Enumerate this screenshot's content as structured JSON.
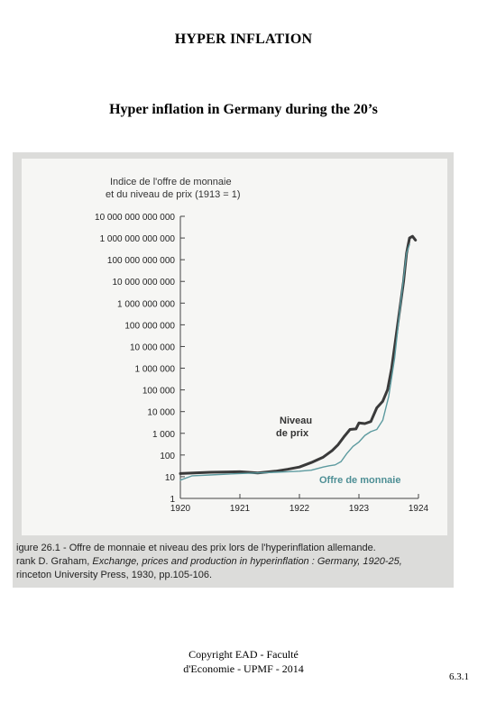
{
  "page": {
    "title": "HYPER INFLATION",
    "subtitle": "Hyper inflation in Germany during the 20’s",
    "copyright_line1": "Copyright EAD - Faculté",
    "copyright_line2": "d'Economie - UPMF - 2014",
    "page_number": "6.3.1"
  },
  "figure": {
    "caption_line1": "igure 26.1 - Offre de monnaie et niveau des prix lors de l'hyperinflation allemande.",
    "caption_line2_a": "rank D. Graham, ",
    "caption_line2_b": "Exchange, prices and production in hyperinflation : Germany, 1920-25,",
    "caption_line3": "rinceton University Press, 1930, pp.105-106."
  },
  "chart_data": {
    "type": "line",
    "title_line1": "Indice de l'offre de monnaie",
    "title_line2": "et du niveau de prix (1913 = 1)",
    "yscale": "log",
    "ylim": [
      1,
      10000000000000
    ],
    "xlim": [
      1920,
      1924
    ],
    "x_ticks": [
      "1920",
      "1921",
      "1922",
      "1923",
      "1924"
    ],
    "y_ticks": [
      {
        "value": 1,
        "label": "1"
      },
      {
        "value": 10,
        "label": "10"
      },
      {
        "value": 100,
        "label": "100"
      },
      {
        "value": 1000,
        "label": "1 000"
      },
      {
        "value": 10000,
        "label": "10 000"
      },
      {
        "value": 100000,
        "label": "100 000"
      },
      {
        "value": 1000000,
        "label": "1 000 000"
      },
      {
        "value": 10000000,
        "label": "10 000 000"
      },
      {
        "value": 100000000,
        "label": "100 000 000"
      },
      {
        "value": 1000000000,
        "label": "1 000 000 000"
      },
      {
        "value": 10000000000,
        "label": "10 000 000 000"
      },
      {
        "value": 100000000000,
        "label": "100 000 000 000"
      },
      {
        "value": 1000000000000,
        "label": "1 000 000 000 000"
      },
      {
        "value": 10000000000000,
        "label": "10 000 000 000 000"
      }
    ],
    "series": [
      {
        "name": "Niveau de prix",
        "color": "#3a3a3a",
        "x": [
          1920.0,
          1920.5,
          1921.0,
          1921.3,
          1921.6,
          1921.8,
          1922.0,
          1922.2,
          1922.4,
          1922.55,
          1922.65,
          1922.75,
          1922.85,
          1922.95,
          1923.0,
          1923.1,
          1923.2,
          1923.3,
          1923.4,
          1923.48,
          1923.55,
          1923.6,
          1923.65,
          1923.7,
          1923.75,
          1923.8,
          1923.85,
          1923.9,
          1923.95
        ],
        "y": [
          14,
          16,
          17,
          15,
          18,
          22,
          28,
          45,
          80,
          160,
          300,
          700,
          1500,
          1600,
          3000,
          2800,
          3500,
          15000,
          30000,
          100000,
          1000000,
          10000000,
          100000000,
          1000000000,
          10000000000,
          200000000000,
          1000000000000,
          1200000000000,
          800000000000
        ]
      },
      {
        "name": "Offre de monnaie",
        "color": "#5c9a9f",
        "x": [
          1920.0,
          1920.2,
          1920.5,
          1921.0,
          1921.3,
          1921.6,
          1921.8,
          1922.0,
          1922.2,
          1922.4,
          1922.5,
          1922.6,
          1922.7,
          1922.8,
          1922.9,
          1923.0,
          1923.1,
          1923.2,
          1923.3,
          1923.4,
          1923.5,
          1923.6,
          1923.7,
          1923.8,
          1923.85
        ],
        "y": [
          7,
          11,
          12,
          14,
          15,
          16,
          17,
          18,
          20,
          28,
          32,
          35,
          50,
          120,
          250,
          400,
          800,
          1200,
          1500,
          4000,
          50000,
          3000000,
          1000000000,
          200000000000,
          500000000000
        ]
      }
    ],
    "annotations": [
      {
        "text_line1": "Niveau",
        "text_line2": "de prix",
        "series": "Niveau de prix"
      },
      {
        "text": "Offre de monnaie",
        "series": "Offre de monnaie"
      }
    ]
  }
}
